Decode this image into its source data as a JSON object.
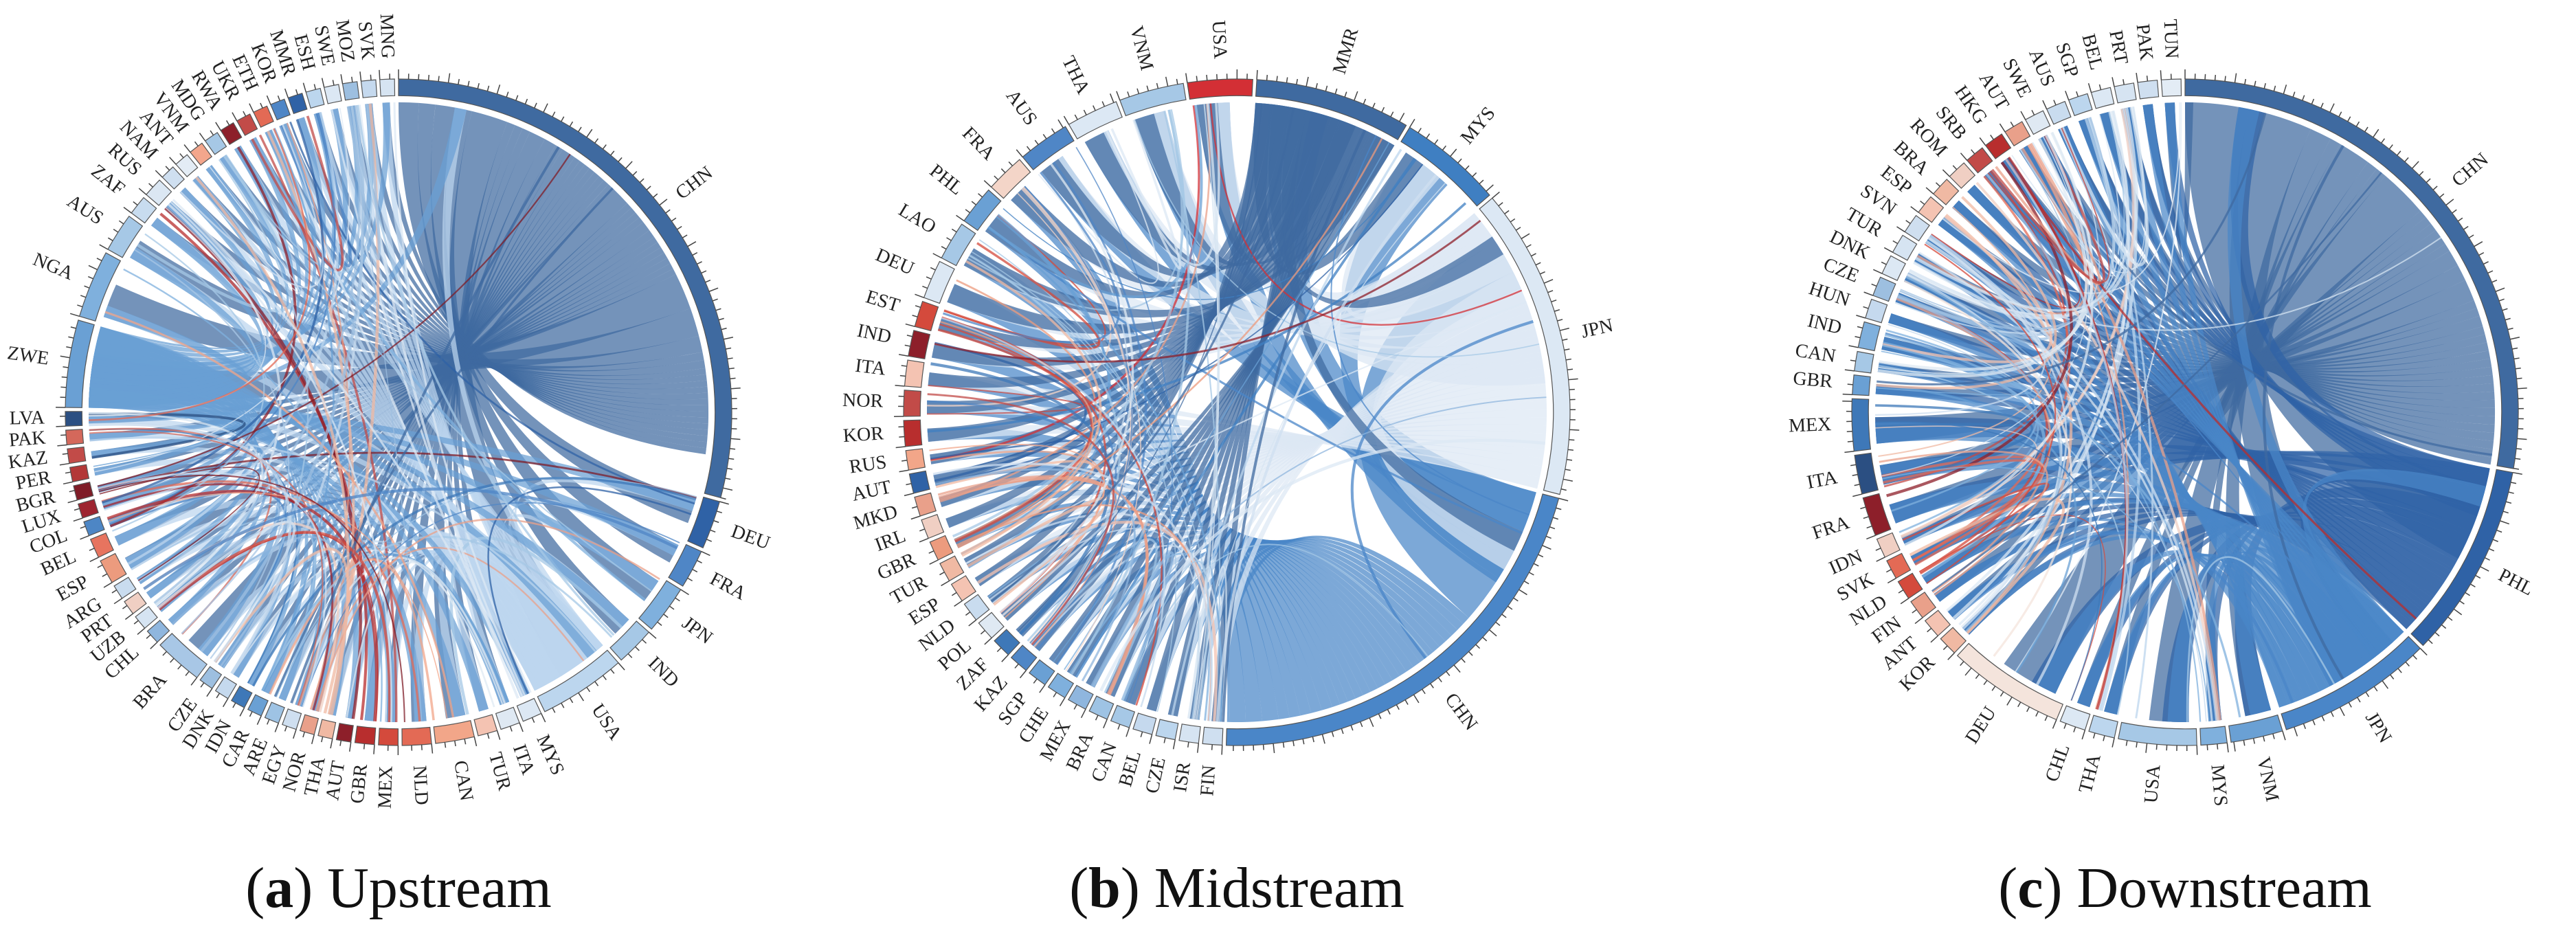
{
  "chart_data": [
    {
      "type": "chord",
      "panel_label": "a",
      "caption": "Upstream",
      "nodes": [
        {
          "label": "CHN",
          "value": 62,
          "color": "#3f6aa0"
        },
        {
          "label": "DEU",
          "value": 5,
          "color": "#2f62a6"
        },
        {
          "label": "FRA",
          "value": 4,
          "color": "#4f86c6"
        },
        {
          "label": "JPN",
          "value": 5,
          "color": "#7fb0dd"
        },
        {
          "label": "IND",
          "value": 4,
          "color": "#a6c8e6"
        },
        {
          "label": "USA",
          "value": 9,
          "color": "#bcd6ee"
        },
        {
          "label": "MYS",
          "value": 2,
          "color": "#dce8f4"
        },
        {
          "label": "ITA",
          "value": 2,
          "color": "#dfe9f3"
        },
        {
          "label": "TUR",
          "value": 2,
          "color": "#f4c3b2"
        },
        {
          "label": "CAN",
          "value": 4,
          "color": "#f2a689"
        },
        {
          "label": "NLD",
          "value": 3,
          "color": "#e36a55"
        },
        {
          "label": "MEX",
          "value": 2,
          "color": "#d44a3c"
        },
        {
          "label": "GBR",
          "value": 2,
          "color": "#b82e2e"
        },
        {
          "label": "AUT",
          "value": 1.5,
          "color": "#8d1f2a"
        },
        {
          "label": "THA",
          "value": 1.5,
          "color": "#f0b9a3"
        },
        {
          "label": "NOR",
          "value": 1.5,
          "color": "#e9a08a"
        },
        {
          "label": "EGY",
          "value": 1.5,
          "color": "#cfdff0"
        },
        {
          "label": "ARE",
          "value": 1.5,
          "color": "#9ec3e4"
        },
        {
          "label": "CAR",
          "value": 1.5,
          "color": "#6aa0d4"
        },
        {
          "label": "IDN",
          "value": 1.5,
          "color": "#3e78b8"
        },
        {
          "label": "DNK",
          "value": 1.5,
          "color": "#c5d9ee"
        },
        {
          "label": "CZE",
          "value": 1.5,
          "color": "#9dbfe0"
        },
        {
          "label": "BRA",
          "value": 5,
          "color": "#a8c7e6"
        },
        {
          "label": "CHL",
          "value": 1.5,
          "color": "#8fb6de"
        },
        {
          "label": "UZB",
          "value": 1.5,
          "color": "#d6e4f2"
        },
        {
          "label": "PRT",
          "value": 1.5,
          "color": "#f0cfc3"
        },
        {
          "label": "ARG",
          "value": 1.5,
          "color": "#c9dcef"
        },
        {
          "label": "ESP",
          "value": 2.5,
          "color": "#ec9b7e"
        },
        {
          "label": "BEL",
          "value": 2,
          "color": "#e7745f"
        },
        {
          "label": "COL",
          "value": 1.5,
          "color": "#4d86c5"
        },
        {
          "label": "LUX",
          "value": 1.5,
          "color": "#9e2530"
        },
        {
          "label": "BGR",
          "value": 1.5,
          "color": "#7f1c27"
        },
        {
          "label": "PER",
          "value": 1.5,
          "color": "#b33838"
        },
        {
          "label": "KAZ",
          "value": 1.5,
          "color": "#c24b48"
        },
        {
          "label": "PAK",
          "value": 1.5,
          "color": "#d4685b"
        },
        {
          "label": "LVA",
          "value": 1.5,
          "color": "#2b4f82"
        },
        {
          "label": "ZWE",
          "value": 9,
          "color": "#6aa0d4"
        },
        {
          "label": "NGA",
          "value": 7,
          "color": "#7fb0dd"
        },
        {
          "label": "AUS",
          "value": 4,
          "color": "#a6c8e6"
        },
        {
          "label": "ZAF",
          "value": 2,
          "color": "#c8dcef"
        },
        {
          "label": "RUS",
          "value": 2,
          "color": "#dbe7f3"
        },
        {
          "label": "NAM",
          "value": 1.5,
          "color": "#cfdff0"
        },
        {
          "label": "ANT",
          "value": 1.5,
          "color": "#e3ecf5"
        },
        {
          "label": "VNM",
          "value": 1.5,
          "color": "#f3a68c"
        },
        {
          "label": "MDG",
          "value": 1.5,
          "color": "#a6c8e6"
        },
        {
          "label": "RWA",
          "value": 1.5,
          "color": "#8d1f2a"
        },
        {
          "label": "UKR",
          "value": 1.5,
          "color": "#c24b48"
        },
        {
          "label": "ETH",
          "value": 1.5,
          "color": "#e36a55"
        },
        {
          "label": "KOR",
          "value": 1.5,
          "color": "#4f86c6"
        },
        {
          "label": "MMR",
          "value": 1.5,
          "color": "#2f62a6"
        },
        {
          "label": "ESH",
          "value": 1.5,
          "color": "#bcd6ee"
        },
        {
          "label": "SWE",
          "value": 1.5,
          "color": "#dce8f4"
        },
        {
          "label": "MOZ",
          "value": 1.5,
          "color": "#9dbfe0"
        },
        {
          "label": "SVK",
          "value": 1.5,
          "color": "#c5d9ee"
        },
        {
          "label": "MNG",
          "value": 1.5,
          "color": "#d6e4f2"
        }
      ]
    },
    {
      "type": "chord",
      "panel_label": "b",
      "caption": "Midstream",
      "nodes": [
        {
          "label": "MMR",
          "value": 12,
          "color": "#3f6aa0"
        },
        {
          "label": "MYS",
          "value": 8,
          "color": "#3f7fc2"
        },
        {
          "label": "JPN",
          "value": 24,
          "color": "#dce8f4"
        },
        {
          "label": "CHN",
          "value": 34,
          "color": "#4a86c8"
        },
        {
          "label": "FIN",
          "value": 1.5,
          "color": "#cfdff0"
        },
        {
          "label": "ISR",
          "value": 1.5,
          "color": "#d6e4f2"
        },
        {
          "label": "CZE",
          "value": 1.5,
          "color": "#bcd6ee"
        },
        {
          "label": "BEL",
          "value": 1.5,
          "color": "#c5d9ee"
        },
        {
          "label": "CAN",
          "value": 1.5,
          "color": "#a6c8e6"
        },
        {
          "label": "BRA",
          "value": 1.5,
          "color": "#9ec3e4"
        },
        {
          "label": "MEX",
          "value": 1.5,
          "color": "#8fb6de"
        },
        {
          "label": "CHE",
          "value": 1.5,
          "color": "#7fb0dd"
        },
        {
          "label": "SGP",
          "value": 1.5,
          "color": "#6aa0d4"
        },
        {
          "label": "KAZ",
          "value": 1.5,
          "color": "#4f86c6"
        },
        {
          "label": "ZAF",
          "value": 1.5,
          "color": "#3e78b8"
        },
        {
          "label": "POL",
          "value": 1.5,
          "color": "#dfe9f3"
        },
        {
          "label": "NLD",
          "value": 1.5,
          "color": "#c9dcef"
        },
        {
          "label": "ESP",
          "value": 1.5,
          "color": "#f4c3b2"
        },
        {
          "label": "TUR",
          "value": 1.5,
          "color": "#f0b9a3"
        },
        {
          "label": "GBR",
          "value": 1.5,
          "color": "#ec9b7e"
        },
        {
          "label": "IRL",
          "value": 1.5,
          "color": "#f0cfc3"
        },
        {
          "label": "MKD",
          "value": 1.5,
          "color": "#e9a08a"
        },
        {
          "label": "AUT",
          "value": 1.5,
          "color": "#2f62a6"
        },
        {
          "label": "RUS",
          "value": 1.5,
          "color": "#f2a689"
        },
        {
          "label": "KOR",
          "value": 2,
          "color": "#b82e2e"
        },
        {
          "label": "NOR",
          "value": 2,
          "color": "#c24b48"
        },
        {
          "label": "ITA",
          "value": 2,
          "color": "#f4c3b2"
        },
        {
          "label": "IND",
          "value": 2,
          "color": "#8d1f2a"
        },
        {
          "label": "EST",
          "value": 2,
          "color": "#d44a3c"
        },
        {
          "label": "DEU",
          "value": 3,
          "color": "#dce8f4"
        },
        {
          "label": "LAO",
          "value": 3,
          "color": "#a6c8e6"
        },
        {
          "label": "PHL",
          "value": 3,
          "color": "#6aa0d4"
        },
        {
          "label": "FRA",
          "value": 3,
          "color": "#f4d5c8"
        },
        {
          "label": "AUS",
          "value": 4,
          "color": "#4f86c6"
        },
        {
          "label": "THA",
          "value": 4,
          "color": "#dce8f4"
        },
        {
          "label": "VNM",
          "value": 5,
          "color": "#a6c8e6"
        },
        {
          "label": "USA",
          "value": 5,
          "color": "#d32f35"
        }
      ]
    },
    {
      "type": "chord",
      "panel_label": "c",
      "caption": "Downstream",
      "nodes": [
        {
          "label": "CHN",
          "value": 44,
          "color": "#3f6aa0"
        },
        {
          "label": "PHL",
          "value": 15,
          "color": "#2f62a6"
        },
        {
          "label": "JPN",
          "value": 12,
          "color": "#4a86c8"
        },
        {
          "label": "VNM",
          "value": 4,
          "color": "#6aa0d4"
        },
        {
          "label": "MYS",
          "value": 2,
          "color": "#7fb0dd"
        },
        {
          "label": "USA",
          "value": 6,
          "color": "#a6c8e6"
        },
        {
          "label": "THA",
          "value": 2,
          "color": "#bcd6ee"
        },
        {
          "label": "CHL",
          "value": 2,
          "color": "#dce8f4"
        },
        {
          "label": "DEU",
          "value": 9,
          "color": "#f4e4dc"
        },
        {
          "label": "KOR",
          "value": 1.5,
          "color": "#f0b9a3"
        },
        {
          "label": "ANT",
          "value": 1.5,
          "color": "#f4c3b2"
        },
        {
          "label": "FIN",
          "value": 1.5,
          "color": "#e9a08a"
        },
        {
          "label": "NLD",
          "value": 1.5,
          "color": "#d44a3c"
        },
        {
          "label": "SVK",
          "value": 1.5,
          "color": "#e36a55"
        },
        {
          "label": "IDN",
          "value": 1.5,
          "color": "#f0cfc3"
        },
        {
          "label": "FRA",
          "value": 3,
          "color": "#8d1f2a"
        },
        {
          "label": "ITA",
          "value": 3,
          "color": "#2b4f82"
        },
        {
          "label": "MEX",
          "value": 4,
          "color": "#3e78b8"
        },
        {
          "label": "GBR",
          "value": 1.5,
          "color": "#6aa0d4"
        },
        {
          "label": "CAN",
          "value": 1.5,
          "color": "#a6c8e6"
        },
        {
          "label": "IND",
          "value": 2,
          "color": "#7fb0dd"
        },
        {
          "label": "HUN",
          "value": 1.5,
          "color": "#c5d9ee"
        },
        {
          "label": "CZE",
          "value": 1.5,
          "color": "#9dbfe0"
        },
        {
          "label": "DNK",
          "value": 1.5,
          "color": "#dce8f4"
        },
        {
          "label": "TUR",
          "value": 1.5,
          "color": "#d6e4f2"
        },
        {
          "label": "SVN",
          "value": 1.5,
          "color": "#cfdff0"
        },
        {
          "label": "ESP",
          "value": 1.5,
          "color": "#f4c3b2"
        },
        {
          "label": "BRA",
          "value": 1.5,
          "color": "#f0b9a3"
        },
        {
          "label": "ROM",
          "value": 1.5,
          "color": "#f0cfc3"
        },
        {
          "label": "SRB",
          "value": 1.5,
          "color": "#c24b48"
        },
        {
          "label": "HKG",
          "value": 1.5,
          "color": "#b82e2e"
        },
        {
          "label": "AUT",
          "value": 1.5,
          "color": "#e9a08a"
        },
        {
          "label": "SWE",
          "value": 1.5,
          "color": "#dfe9f3"
        },
        {
          "label": "AUS",
          "value": 1.5,
          "color": "#c9dcef"
        },
        {
          "label": "SGP",
          "value": 1.5,
          "color": "#bcd6ee"
        },
        {
          "label": "BEL",
          "value": 1.5,
          "color": "#dce8f4"
        },
        {
          "label": "PRT",
          "value": 1.5,
          "color": "#d6e4f2"
        },
        {
          "label": "PAK",
          "value": 1.5,
          "color": "#cfdff0"
        },
        {
          "label": "TUN",
          "value": 1.5,
          "color": "#e3ecf5"
        }
      ]
    }
  ]
}
